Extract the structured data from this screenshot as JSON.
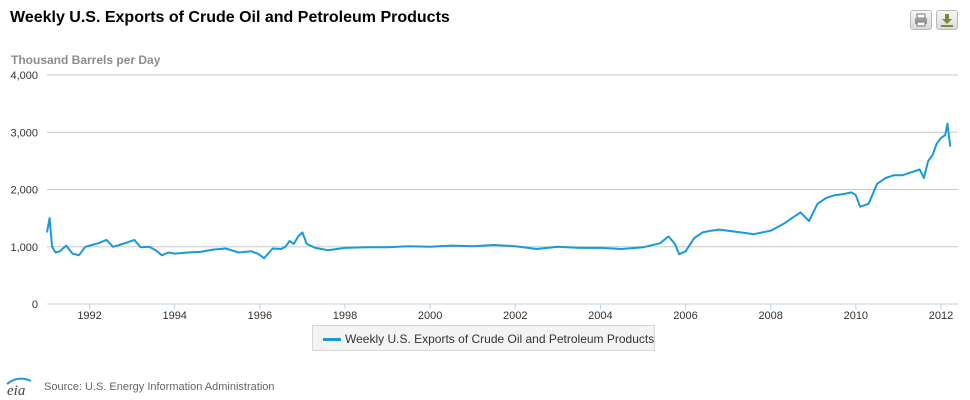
{
  "header": {
    "title": "Weekly U.S. Exports of Crude Oil and Petroleum Products",
    "print_icon": "print-icon",
    "download_icon": "download-icon"
  },
  "footer": {
    "logo_text": "eia",
    "source": "Source: U.S. Energy Information Administration"
  },
  "colors": {
    "series": "#1a9ad6",
    "grid": "#c8c8c8",
    "axis": "#c0d0e0"
  },
  "chart_data": {
    "type": "line",
    "title": "Weekly U.S. Exports of Crude Oil and Petroleum Products",
    "ylabel": "Thousand Barrels per Day",
    "xlabel": "",
    "ylim": [
      0,
      4000
    ],
    "xlim": [
      1991.0,
      2012.4
    ],
    "yticks": [
      "0",
      "1,000",
      "2,000",
      "3,000",
      "4,000"
    ],
    "xticks": [
      "1992",
      "1994",
      "1996",
      "1998",
      "2000",
      "2002",
      "2004",
      "2006",
      "2008",
      "2010",
      "2012"
    ],
    "grid": true,
    "legend_position": "bottom",
    "series": [
      {
        "name": "Weekly U.S. Exports of Crude Oil and Petroleum Products",
        "x": [
          1991.0,
          1991.06,
          1991.12,
          1991.2,
          1991.3,
          1991.45,
          1991.6,
          1991.75,
          1991.9,
          1992.0,
          1992.2,
          1992.4,
          1992.55,
          1992.7,
          1992.9,
          1993.05,
          1993.2,
          1993.4,
          1993.55,
          1993.7,
          1993.85,
          1994.0,
          1994.3,
          1994.6,
          1994.9,
          1995.2,
          1995.5,
          1995.8,
          1995.95,
          1996.1,
          1996.3,
          1996.5,
          1996.6,
          1996.7,
          1996.8,
          1996.9,
          1997.0,
          1997.1,
          1997.3,
          1997.6,
          1998.0,
          1998.5,
          1999.0,
          1999.5,
          2000.0,
          2000.5,
          2001.0,
          2001.5,
          2002.0,
          2002.5,
          2003.0,
          2003.5,
          2004.0,
          2004.5,
          2005.0,
          2005.4,
          2005.6,
          2005.75,
          2005.85,
          2006.0,
          2006.2,
          2006.4,
          2006.6,
          2006.8,
          2007.0,
          2007.3,
          2007.6,
          2008.0,
          2008.3,
          2008.5,
          2008.7,
          2008.9,
          2009.1,
          2009.3,
          2009.5,
          2009.7,
          2009.9,
          2010.0,
          2010.1,
          2010.3,
          2010.5,
          2010.7,
          2010.9,
          2011.1,
          2011.3,
          2011.5,
          2011.6,
          2011.7,
          2011.8,
          2011.9,
          2012.0,
          2012.1,
          2012.15,
          2012.22
        ],
        "values": [
          1250,
          1500,
          1000,
          900,
          920,
          1020,
          880,
          850,
          1000,
          1020,
          1060,
          1120,
          1000,
          1030,
          1080,
          1120,
          990,
          1000,
          940,
          850,
          900,
          880,
          900,
          910,
          950,
          970,
          900,
          920,
          880,
          800,
          970,
          960,
          1000,
          1100,
          1050,
          1180,
          1250,
          1050,
          980,
          940,
          980,
          990,
          990,
          1010,
          1000,
          1020,
          1010,
          1030,
          1010,
          960,
          1000,
          980,
          980,
          960,
          990,
          1060,
          1180,
          1050,
          870,
          920,
          1150,
          1250,
          1280,
          1300,
          1280,
          1250,
          1220,
          1280,
          1400,
          1500,
          1600,
          1450,
          1750,
          1850,
          1900,
          1920,
          1950,
          1900,
          1700,
          1750,
          2100,
          2200,
          2250,
          2250,
          2300,
          2350,
          2200,
          2500,
          2600,
          2800,
          2900,
          2950,
          3150,
          2750
        ]
      }
    ]
  }
}
